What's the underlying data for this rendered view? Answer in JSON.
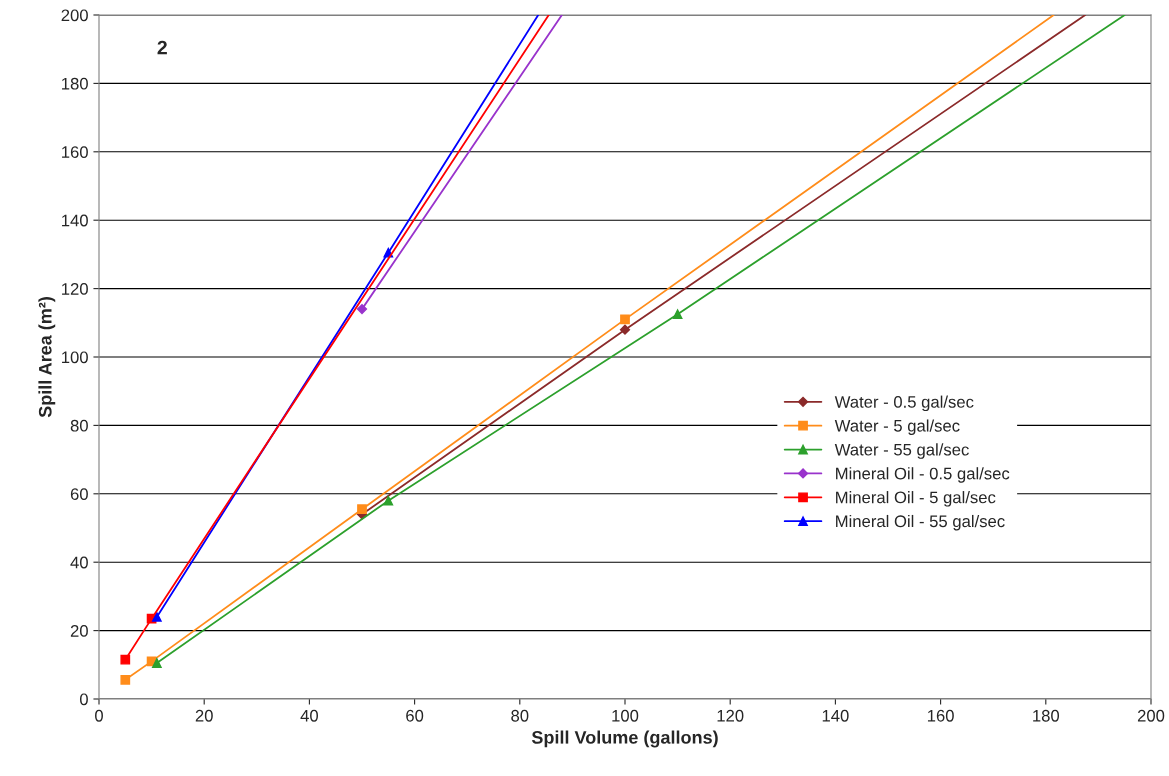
{
  "chart_data": {
    "type": "line",
    "xlabel": "Spill Volume (gallons)",
    "ylabel": "Spill Area (m²)",
    "annotations": [
      "2"
    ],
    "xlim": [
      0,
      200
    ],
    "xticks": [
      0,
      20,
      40,
      60,
      80,
      100,
      120,
      140,
      160,
      180,
      200
    ],
    "ylim": [
      0,
      200
    ],
    "yticks": [
      0,
      20,
      40,
      60,
      80,
      100,
      120,
      140,
      160,
      180,
      200
    ],
    "grid": "y",
    "legend": "right",
    "line_style": "solid",
    "series": [
      {
        "name": "Water - 0.5 gal/sec",
        "color": "#8b2a2a",
        "marker": "diamond",
        "x": [
          50,
          100
        ],
        "values": [
          54,
          108
        ]
      },
      {
        "name": "Water - 5 gal/sec",
        "color": "#ff8c1a",
        "marker": "square",
        "x": [
          5,
          10,
          50,
          100
        ],
        "values": [
          5.6,
          11,
          55.5,
          111
        ]
      },
      {
        "name": "Water - 55 gal/sec",
        "color": "#2ca02c",
        "marker": "triangle",
        "x": [
          11,
          55,
          110
        ],
        "values": [
          10.5,
          58,
          112.5
        ]
      },
      {
        "name": "Mineral Oil - 0.5 gal/sec",
        "color": "#9933cc",
        "marker": "diamond",
        "x": [
          50
        ],
        "values": [
          114
        ]
      },
      {
        "name": "Mineral Oil - 5 gal/sec",
        "color": "#ff0000",
        "marker": "square",
        "x": [
          5,
          10
        ],
        "values": [
          11.5,
          23.5
        ]
      },
      {
        "name": "Mineral Oil - 55 gal/sec",
        "color": "#0000ff",
        "marker": "triangle",
        "x": [
          11,
          55
        ],
        "values": [
          24,
          130.5
        ]
      },
      {
        "type": "line",
        "color": "#8b2a2a",
        "marker": "none",
        "x": [
          100,
          187.5
        ],
        "values": [
          108,
          200
        ]
      },
      {
        "type": "line",
        "color": "#ff8c1a",
        "marker": "none",
        "x": [
          100,
          181.5
        ],
        "values": [
          111,
          200
        ]
      },
      {
        "type": "line",
        "color": "#2ca02c",
        "marker": "none",
        "x": [
          110,
          195
        ],
        "values": [
          112.5,
          200
        ]
      },
      {
        "type": "line",
        "color": "#9933cc",
        "marker": "none",
        "x": [
          50,
          88
        ],
        "values": [
          114,
          200
        ]
      },
      {
        "type": "line",
        "color": "#ff0000",
        "marker": "none",
        "x": [
          10,
          85.5
        ],
        "values": [
          23.5,
          200
        ]
      },
      {
        "type": "line",
        "color": "#0000ff",
        "marker": "none",
        "x": [
          55,
          83.5
        ],
        "values": [
          130.5,
          200
        ]
      }
    ]
  }
}
